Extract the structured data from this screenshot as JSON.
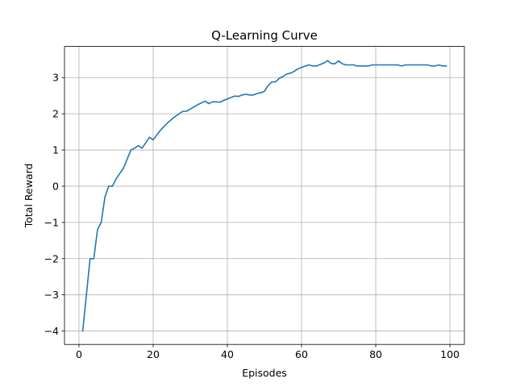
{
  "chart_data": {
    "type": "line",
    "title": "Q-Learning Curve",
    "xlabel": "Episodes",
    "ylabel": "Total Reward",
    "xlim": [
      -3.9,
      103.9
    ],
    "ylim": [
      -4.37,
      3.86
    ],
    "xticks": [
      {
        "value": 0,
        "label": "0"
      },
      {
        "value": 20,
        "label": "20"
      },
      {
        "value": 40,
        "label": "40"
      },
      {
        "value": 60,
        "label": "60"
      },
      {
        "value": 80,
        "label": "80"
      },
      {
        "value": 100,
        "label": "100"
      }
    ],
    "yticks": [
      {
        "value": -4,
        "label": "−4"
      },
      {
        "value": -3,
        "label": "−3"
      },
      {
        "value": -2,
        "label": "−2"
      },
      {
        "value": -1,
        "label": "−1"
      },
      {
        "value": 0,
        "label": "0"
      },
      {
        "value": 1,
        "label": "1"
      },
      {
        "value": 2,
        "label": "2"
      },
      {
        "value": 3,
        "label": "3"
      }
    ],
    "grid": true,
    "color": "#1f77b4",
    "x": [
      1,
      2,
      3,
      4,
      5,
      6,
      7,
      8,
      9,
      10,
      11,
      12,
      13,
      14,
      15,
      16,
      17,
      18,
      19,
      20,
      21,
      22,
      23,
      24,
      25,
      26,
      27,
      28,
      29,
      30,
      31,
      32,
      33,
      34,
      35,
      36,
      37,
      38,
      39,
      40,
      41,
      42,
      43,
      44,
      45,
      46,
      47,
      48,
      49,
      50,
      51,
      52,
      53,
      54,
      55,
      56,
      57,
      58,
      59,
      60,
      61,
      62,
      63,
      64,
      65,
      66,
      67,
      68,
      69,
      70,
      71,
      72,
      73,
      74,
      75,
      76,
      77,
      78,
      79,
      80,
      81,
      82,
      83,
      84,
      85,
      86,
      87,
      88,
      89,
      90,
      91,
      92,
      93,
      94,
      95,
      96,
      97,
      98,
      99
    ],
    "y": [
      -4.0,
      -3.0,
      -2.0,
      -2.0,
      -1.2,
      -1.0,
      -0.3,
      0.0,
      0.0,
      0.2,
      0.35,
      0.5,
      0.75,
      1.0,
      1.05,
      1.12,
      1.05,
      1.2,
      1.35,
      1.28,
      1.42,
      1.55,
      1.66,
      1.76,
      1.85,
      1.93,
      2.0,
      2.07,
      2.07,
      2.13,
      2.19,
      2.25,
      2.3,
      2.35,
      2.28,
      2.33,
      2.33,
      2.32,
      2.37,
      2.41,
      2.45,
      2.49,
      2.48,
      2.52,
      2.54,
      2.52,
      2.52,
      2.56,
      2.58,
      2.62,
      2.78,
      2.88,
      2.88,
      2.98,
      3.03,
      3.1,
      3.12,
      3.17,
      3.24,
      3.28,
      3.32,
      3.35,
      3.32,
      3.32,
      3.36,
      3.4,
      3.47,
      3.39,
      3.38,
      3.46,
      3.38,
      3.35,
      3.35,
      3.35,
      3.32,
      3.32,
      3.32,
      3.32,
      3.35,
      3.35,
      3.35,
      3.35,
      3.35,
      3.35,
      3.35,
      3.35,
      3.32,
      3.35,
      3.35,
      3.35,
      3.35,
      3.35,
      3.35,
      3.35,
      3.32,
      3.32,
      3.35,
      3.32,
      3.32
    ]
  }
}
